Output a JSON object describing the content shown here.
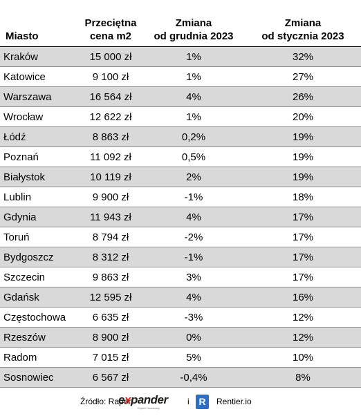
{
  "header": {
    "city": "Miasto",
    "price_line1": "Przeciętna",
    "price_line2": "cena m2",
    "dec_line1": "Zmiana",
    "dec_line2": "od grudnia 2023",
    "jan_line1": "Zmiana",
    "jan_line2": "od stycznia 2023"
  },
  "rows": [
    {
      "city": "Kraków",
      "price": "15 000 zł",
      "dec": "1%",
      "jan": "32%"
    },
    {
      "city": "Katowice",
      "price": "9 100 zł",
      "dec": "1%",
      "jan": "27%"
    },
    {
      "city": "Warszawa",
      "price": "16 564 zł",
      "dec": "4%",
      "jan": "26%"
    },
    {
      "city": "Wrocław",
      "price": "12 622 zł",
      "dec": "1%",
      "jan": "20%"
    },
    {
      "city": "Łódź",
      "price": "8 863 zł",
      "dec": "0,2%",
      "jan": "19%"
    },
    {
      "city": "Poznań",
      "price": "11 092 zł",
      "dec": "0,5%",
      "jan": "19%"
    },
    {
      "city": "Białystok",
      "price": "10 119 zł",
      "dec": "2%",
      "jan": "19%"
    },
    {
      "city": "Lublin",
      "price": "9 900 zł",
      "dec": "-1%",
      "jan": "18%"
    },
    {
      "city": "Gdynia",
      "price": "11 943 zł",
      "dec": "4%",
      "jan": "17%"
    },
    {
      "city": "Toruń",
      "price": "8 794 zł",
      "dec": "-2%",
      "jan": "17%"
    },
    {
      "city": "Bydgoszcz",
      "price": "8 312 zł",
      "dec": "-1%",
      "jan": "17%"
    },
    {
      "city": "Szczecin",
      "price": "9 863 zł",
      "dec": "3%",
      "jan": "17%"
    },
    {
      "city": "Gdańsk",
      "price": "12 595 zł",
      "dec": "4%",
      "jan": "16%"
    },
    {
      "city": "Częstochowa",
      "price": "6 635 zł",
      "dec": "-3%",
      "jan": "12%"
    },
    {
      "city": "Rzeszów",
      "price": "8 900 zł",
      "dec": "0%",
      "jan": "12%"
    },
    {
      "city": "Radom",
      "price": "7 015 zł",
      "dec": "5%",
      "jan": "10%"
    },
    {
      "city": "Sosnowiec",
      "price": "6 567 zł",
      "dec": "-0,4%",
      "jan": "8%"
    }
  ],
  "footer": {
    "source": "Źródło: Raport",
    "expander_pre": "e",
    "expander_x": "x",
    "expander_post": "pander",
    "expander_tagline": "Expert Finansowy",
    "and": "i",
    "rentier_letter": "R",
    "rentier": "Rentier.io"
  },
  "colors": {
    "alt_row": "#d9d9d9",
    "expander_red": "#e2231a",
    "rentier_blue": "#2d6fc4"
  }
}
